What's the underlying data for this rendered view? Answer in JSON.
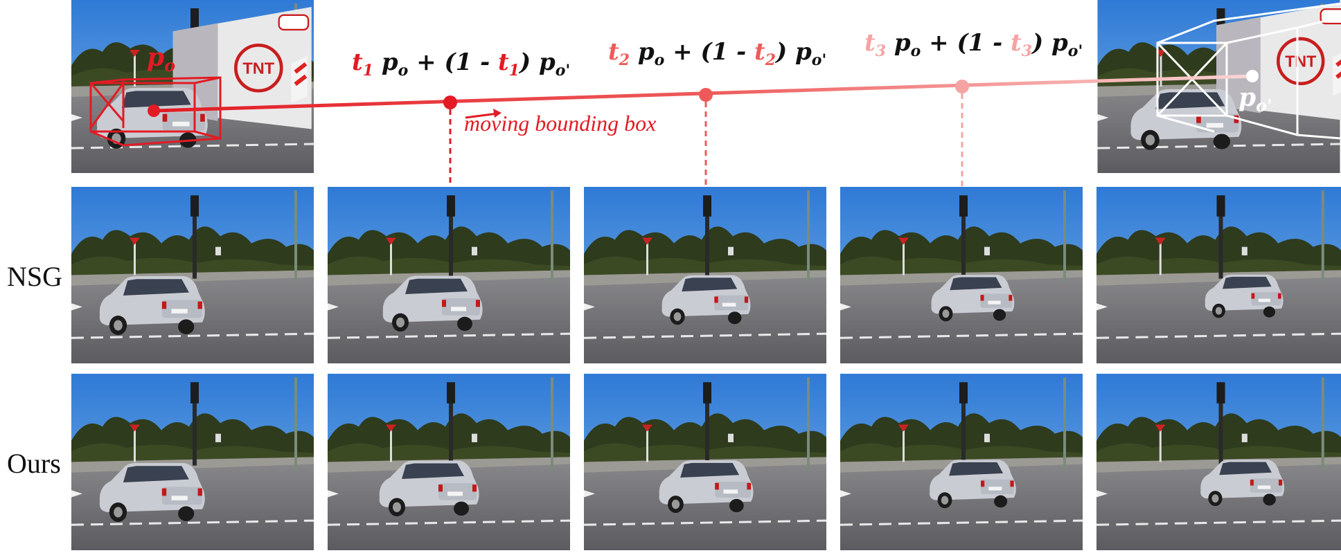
{
  "rows": [
    {
      "label": "NSG"
    },
    {
      "label": "Ours"
    }
  ],
  "top": {
    "start_label_base": "p",
    "start_label_sub": "o",
    "end_label_base": "p",
    "end_label_sub": "o'",
    "moving_label": "moving bounding box",
    "formulas": [
      {
        "t": "t",
        "t_sub": "1",
        "color": "#e21b24"
      },
      {
        "t": "t",
        "t_sub": "2",
        "color": "#ee5a5a"
      },
      {
        "t": "t",
        "t_sub": "3",
        "color": "#f5a3a3"
      }
    ],
    "formula_rest": {
      "p": "p",
      "o": "o",
      "plus": " + (1 - ",
      "close": ") ",
      "p2": "p",
      "o2": "o'"
    }
  },
  "colors": {
    "accent": "#e21b24",
    "mid": "#ee5a5a",
    "light": "#f5a3a3",
    "sky": "#3f86d8",
    "road": "#6f6f72"
  }
}
